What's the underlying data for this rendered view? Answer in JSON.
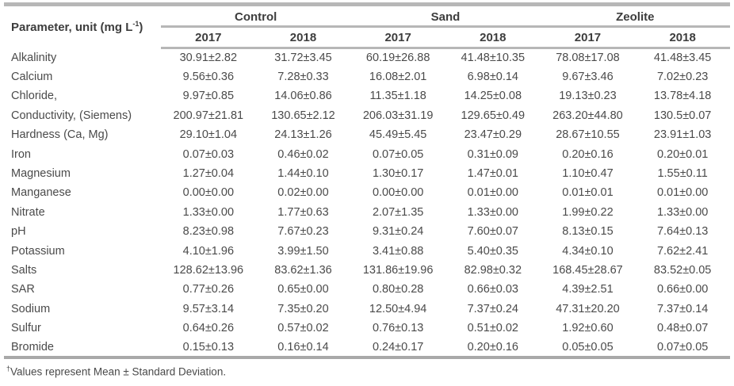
{
  "colors": {
    "rule_gray": "#b7b7b7",
    "text_dark": "#3d3d3d",
    "text_body": "#4a4a4a"
  },
  "table": {
    "param_header": {
      "prefix": "Parameter, unit (mg L",
      "sup": "-1",
      "suffix": ")"
    },
    "groups": [
      "Control",
      "Sand",
      "Zeolite"
    ],
    "year_columns": [
      "2017",
      "2018",
      "2017",
      "2018",
      "2017",
      "2018"
    ],
    "rows": [
      {
        "parameter": "Alkalinity",
        "values": [
          "30.91±2.82",
          "31.72±3.45",
          "60.19±26.88",
          "41.48±10.35",
          "78.08±17.08",
          "41.48±3.45"
        ]
      },
      {
        "parameter": "Calcium",
        "values": [
          "9.56±0.36",
          "7.28±0.33",
          "16.08±2.01",
          "6.98±0.14",
          "9.67±3.46",
          "7.02±0.23"
        ]
      },
      {
        "parameter": "Chloride,",
        "values": [
          "9.97±0.85",
          "14.06±0.86",
          "11.35±1.18",
          "14.25±0.08",
          "19.13±0.23",
          "13.78±4.18"
        ]
      },
      {
        "parameter": "Conductivity, (Siemens)",
        "values": [
          "200.97±21.81",
          "130.65±2.12",
          "206.03±31.19",
          "129.65±0.49",
          "263.20±44.80",
          "130.5±0.07"
        ]
      },
      {
        "parameter": "Hardness (Ca, Mg)",
        "values": [
          "29.10±1.04",
          "24.13±1.26",
          "45.49±5.45",
          "23.47±0.29",
          "28.67±10.55",
          "23.91±1.03"
        ]
      },
      {
        "parameter": "Iron",
        "values": [
          "0.07±0.03",
          "0.46±0.02",
          "0.07±0.05",
          "0.31±0.09",
          "0.20±0.16",
          "0.20±0.01"
        ]
      },
      {
        "parameter": "Magnesium",
        "values": [
          "1.27±0.04",
          "1.44±0.10",
          "1.30±0.17",
          "1.47±0.01",
          "1.10±0.47",
          "1.55±0.11"
        ]
      },
      {
        "parameter": "Manganese",
        "values": [
          "0.00±0.00",
          "0.02±0.00",
          "0.00±0.00",
          "0.01±0.00",
          "0.01±0.01",
          "0.01±0.00"
        ]
      },
      {
        "parameter": "Nitrate",
        "values": [
          "1.33±0.00",
          "1.77±0.63",
          "2.07±1.35",
          "1.33±0.00",
          "1.99±0.22",
          "1.33±0.00"
        ]
      },
      {
        "parameter": "pH",
        "values": [
          "8.23±0.98",
          "7.67±0.23",
          "9.31±0.24",
          "7.60±0.07",
          "8.13±0.15",
          "7.64±0.13"
        ]
      },
      {
        "parameter": "Potassium",
        "values": [
          "4.10±1.96",
          "3.99±1.50",
          "3.41±0.88",
          "5.40±0.35",
          "4.34±0.10",
          "7.62±2.41"
        ]
      },
      {
        "parameter": "Salts",
        "values": [
          "128.62±13.96",
          "83.62±1.36",
          "131.86±19.96",
          "82.98±0.32",
          "168.45±28.67",
          "83.52±0.05"
        ]
      },
      {
        "parameter": "SAR",
        "values": [
          "0.77±0.26",
          "0.65±0.00",
          "0.80±0.28",
          "0.66±0.03",
          "4.39±2.51",
          "0.66±0.00"
        ]
      },
      {
        "parameter": "Sodium",
        "values": [
          "9.57±3.14",
          "7.35±0.20",
          "12.50±4.94",
          "7.37±0.24",
          "47.31±20.20",
          "7.37±0.14"
        ]
      },
      {
        "parameter": "Sulfur",
        "values": [
          "0.64±0.26",
          "0.57±0.02",
          "0.76±0.13",
          "0.51±0.02",
          "1.92±0.60",
          "0.48±0.07"
        ]
      },
      {
        "parameter": "Bromide",
        "values": [
          "0.15±0.13",
          "0.16±0.14",
          "0.24±0.17",
          "0.20±0.16",
          "0.05±0.05",
          "0.07±0.05"
        ]
      }
    ]
  },
  "footnote": {
    "marker": "†",
    "text": "Values represent Mean ± Standard Deviation."
  }
}
